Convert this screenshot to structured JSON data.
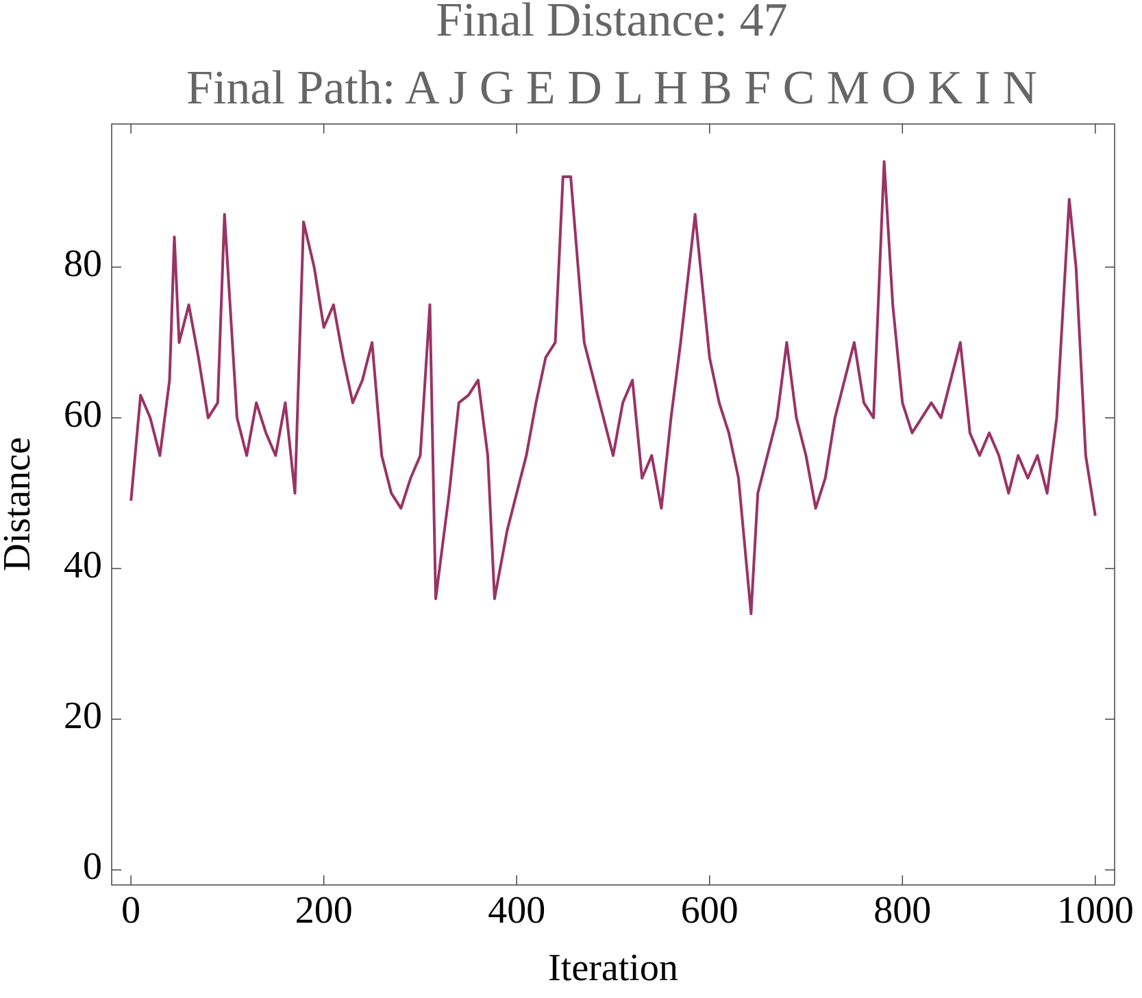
{
  "chart_data": {
    "type": "line",
    "title": "Final Distance: 47",
    "subtitle": "Final Path: A J G E D L H B F C M O K I N",
    "x_label": "Iteration",
    "y_label": "Distance",
    "x": [
      0,
      10,
      20,
      30,
      40,
      45,
      50,
      60,
      70,
      80,
      90,
      97,
      110,
      120,
      130,
      140,
      150,
      160,
      170,
      179,
      190,
      200,
      210,
      220,
      230,
      240,
      250,
      260,
      270,
      280,
      290,
      300,
      310,
      316,
      330,
      340,
      350,
      360,
      370,
      377,
      390,
      400,
      410,
      420,
      430,
      440,
      448,
      456,
      470,
      480,
      490,
      500,
      510,
      520,
      530,
      540,
      550,
      560,
      570,
      585,
      600,
      610,
      620,
      630,
      643,
      650,
      660,
      670,
      680,
      690,
      700,
      710,
      720,
      730,
      740,
      750,
      760,
      770,
      781,
      790,
      800,
      810,
      820,
      830,
      840,
      850,
      860,
      870,
      880,
      890,
      900,
      910,
      920,
      930,
      940,
      950,
      960,
      973,
      980,
      990,
      1000
    ],
    "values": [
      49,
      63,
      60,
      55,
      65,
      84,
      70,
      75,
      68,
      60,
      62,
      87,
      60,
      55,
      62,
      58,
      55,
      62,
      50,
      86,
      80,
      72,
      75,
      68,
      62,
      65,
      70,
      55,
      50,
      48,
      52,
      55,
      75,
      36,
      50,
      62,
      63,
      65,
      55,
      36,
      45,
      50,
      55,
      62,
      68,
      70,
      92,
      92,
      70,
      65,
      60,
      55,
      62,
      65,
      52,
      55,
      48,
      60,
      70,
      87,
      68,
      62,
      58,
      52,
      34,
      50,
      55,
      60,
      70,
      60,
      55,
      48,
      52,
      60,
      65,
      70,
      62,
      60,
      94,
      75,
      62,
      58,
      60,
      62,
      60,
      65,
      70,
      58,
      55,
      58,
      55,
      50,
      55,
      52,
      55,
      50,
      60,
      89,
      80,
      55,
      47
    ],
    "color": "#993366",
    "xlim": [
      -20,
      1020
    ],
    "ylim": [
      -2,
      99
    ],
    "xticks": [
      0,
      200,
      400,
      600,
      800,
      1000
    ],
    "yticks": [
      0,
      20,
      40,
      60,
      80
    ]
  }
}
